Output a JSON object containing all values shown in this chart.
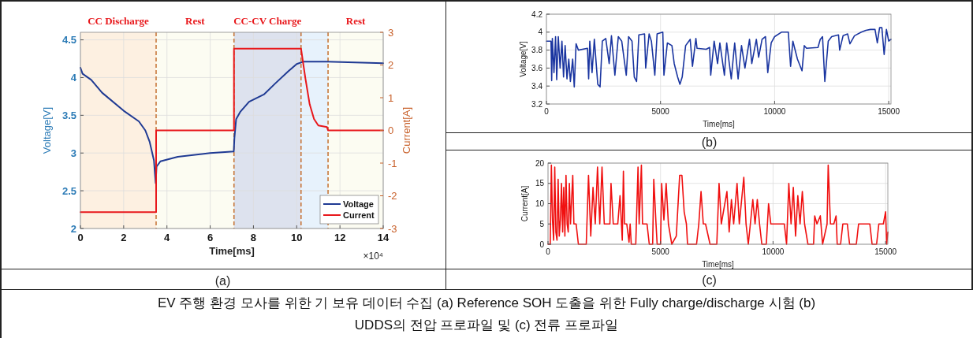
{
  "chart_data": [
    {
      "type": "line",
      "title": "(a)",
      "xlabel": "Time[ms]",
      "ylabel": "Voltage[V]",
      "y2label": "Current[A]",
      "xlim": [
        0,
        14
      ],
      "xticks": [
        0,
        2,
        4,
        6,
        8,
        10,
        12,
        14
      ],
      "ylim": [
        2,
        4.6
      ],
      "yticks": [
        2,
        2.5,
        3,
        3.5,
        4,
        4.5
      ],
      "y2lim": [
        -3,
        3
      ],
      "y2ticks": [
        -3,
        -2,
        -1,
        0,
        1,
        2,
        3
      ],
      "grid": true,
      "legend": "bottom right",
      "annotations": [
        "×10⁴"
      ],
      "bands": [
        {
          "axis": "x",
          "from": 0,
          "to": 3.5,
          "label": "CC Discharge",
          "color": "#fdf0e1"
        },
        {
          "axis": "x",
          "from": 3.5,
          "to": 7.1,
          "label": "Rest",
          "color": "#fcfcf2"
        },
        {
          "axis": "x",
          "from": 7.1,
          "to": 10.2,
          "label": "CC-CV Charge",
          "color": "#dde2ee"
        },
        {
          "axis": "x",
          "from": 10.2,
          "to": 11.45,
          "label": null,
          "color": "#e7f2fc"
        },
        {
          "axis": "x",
          "from": 11.45,
          "to": 14,
          "label": "Rest",
          "color": "#fcfcf2"
        }
      ],
      "ref_lines": [
        {
          "axis": "x",
          "value": 3.5,
          "color": "#c8783c",
          "line_style": "dashed"
        },
        {
          "axis": "x",
          "value": 7.1,
          "color": "#c8783c",
          "line_style": "dashed"
        },
        {
          "axis": "x",
          "value": 10.2,
          "color": "#c8783c",
          "line_style": "dashed"
        },
        {
          "axis": "x",
          "value": 11.45,
          "color": "#c8783c",
          "line_style": "dashed"
        }
      ],
      "series": [
        {
          "name": "Voltage",
          "color": "#1f3a93",
          "x": [
            0,
            0.1,
            0.5,
            1,
            2,
            2.7,
            3,
            3.2,
            3.4,
            3.48,
            3.52,
            3.7,
            4.5,
            6,
            7.09,
            7.12,
            7.2,
            7.4,
            7.8,
            8.5,
            9,
            9.6,
            10,
            10.3,
            11.4,
            14
          ],
          "values": [
            4.13,
            4.05,
            3.97,
            3.8,
            3.56,
            3.42,
            3.3,
            3.15,
            2.9,
            2.6,
            2.82,
            2.89,
            2.95,
            3.0,
            3.02,
            3.2,
            3.45,
            3.55,
            3.68,
            3.78,
            3.92,
            4.08,
            4.18,
            4.21,
            4.21,
            4.19
          ]
        },
        {
          "name": "Current",
          "color": "#e8171b",
          "axis": "y2",
          "x": [
            0,
            3.5,
            3.5,
            7.1,
            7.1,
            10.2,
            10.4,
            10.6,
            10.8,
            11,
            11.4,
            11.45,
            14
          ],
          "values": [
            -2.5,
            -2.5,
            0,
            0,
            2.5,
            2.5,
            1.6,
            0.8,
            0.35,
            0.15,
            0.1,
            0,
            0
          ]
        }
      ]
    },
    {
      "type": "line",
      "title": "(b)",
      "xlabel": "Time[ms]",
      "ylabel": "Voltage[V]",
      "xlim": [
        0,
        15100
      ],
      "xticks": [
        0,
        5000,
        10000,
        15000
      ],
      "ylim": [
        3.2,
        4.2
      ],
      "yticks": [
        3.2,
        3.4,
        3.6,
        3.8,
        4,
        4.2
      ],
      "grid": true,
      "series": [
        {
          "color": "#1a35a0",
          "x": [
            0,
            200,
            230,
            260,
            330,
            400,
            450,
            520,
            600,
            680,
            750,
            820,
            900,
            980,
            1050,
            1150,
            1220,
            1300,
            1400,
            1800,
            1850,
            1900,
            2000,
            2100,
            2250,
            2350,
            2450,
            2600,
            2750,
            2850,
            3000,
            3150,
            3300,
            3500,
            3600,
            3750,
            3850,
            3950,
            4050,
            4300,
            4350,
            4500,
            4600,
            4750,
            4850,
            5100,
            5150,
            5300,
            5500,
            5600,
            5750,
            5850,
            5950,
            6100,
            6300,
            6400,
            6550,
            6600,
            7000,
            7150,
            7200,
            7350,
            7500,
            7600,
            7800,
            7900,
            8100,
            8250,
            8400,
            8550,
            8700,
            8900,
            9000,
            9200,
            9300,
            9450,
            9600,
            9700,
            9850,
            10000,
            10300,
            10600,
            10700,
            10800,
            11000,
            11200,
            11300,
            11400,
            11900,
            12000,
            12100,
            12200,
            12350,
            12500,
            12800,
            12850,
            13000,
            13200,
            13300,
            13500,
            13800,
            14000,
            14200,
            14400,
            14500,
            14600,
            14700,
            14800,
            14900,
            15000,
            15100
          ],
          "values": [
            3.9,
            3.9,
            3.46,
            3.93,
            3.55,
            3.95,
            3.47,
            3.95,
            3.6,
            3.9,
            3.5,
            3.85,
            3.48,
            3.7,
            3.45,
            3.7,
            3.39,
            3.87,
            3.8,
            3.82,
            3.48,
            3.9,
            3.55,
            3.92,
            3.42,
            3.39,
            3.9,
            3.93,
            3.65,
            3.96,
            3.52,
            3.95,
            3.9,
            3.52,
            3.95,
            3.9,
            3.5,
            3.45,
            3.97,
            3.98,
            3.6,
            3.98,
            3.9,
            3.52,
            3.98,
            4.0,
            3.52,
            3.88,
            3.85,
            3.65,
            3.5,
            3.42,
            3.5,
            3.85,
            3.92,
            3.62,
            3.93,
            3.82,
            3.81,
            3.83,
            3.52,
            3.9,
            3.65,
            3.88,
            3.52,
            3.88,
            3.48,
            3.88,
            3.48,
            3.85,
            3.6,
            3.92,
            3.65,
            3.92,
            3.72,
            3.92,
            3.95,
            3.55,
            3.88,
            3.95,
            4.0,
            4.0,
            3.62,
            3.9,
            3.7,
            3.57,
            3.85,
            3.82,
            3.83,
            3.92,
            3.95,
            3.45,
            3.9,
            3.95,
            3.97,
            3.8,
            3.96,
            3.98,
            3.87,
            3.96,
            4.0,
            4.02,
            4.03,
            4.03,
            3.88,
            4.05,
            4.05,
            3.75,
            4.03,
            3.9,
            3.92
          ]
        }
      ]
    },
    {
      "type": "line",
      "title": "(c)",
      "xlabel": "Time[ms]",
      "ylabel": "Current[A]",
      "xlim": [
        0,
        15100
      ],
      "xticks": [
        0,
        5000,
        10000,
        15000
      ],
      "ylim": [
        0,
        20
      ],
      "yticks": [
        0,
        5,
        10,
        15,
        20
      ],
      "grid": true,
      "series": [
        {
          "color": "#f01010",
          "x": [
            0,
            100,
            150,
            200,
            250,
            300,
            350,
            400,
            450,
            500,
            550,
            600,
            650,
            700,
            750,
            800,
            850,
            900,
            950,
            1000,
            1100,
            1150,
            1250,
            1350,
            1700,
            1800,
            1900,
            2000,
            2100,
            2200,
            2300,
            2400,
            2500,
            2750,
            2800,
            2900,
            3100,
            3200,
            3300,
            3350,
            3400,
            3500,
            3600,
            3650,
            3700,
            3900,
            4000,
            4050,
            4150,
            4200,
            4400,
            4500,
            4650,
            4700,
            4800,
            4850,
            5000,
            5050,
            5150,
            5250,
            5350,
            5500,
            5700,
            5850,
            5950,
            6050,
            6150,
            6200,
            6600,
            6700,
            6800,
            6900,
            7000,
            7200,
            7500,
            7600,
            7700,
            7950,
            8050,
            8150,
            8250,
            8400,
            8500,
            8700,
            8800,
            8900,
            9100,
            9200,
            9300,
            9400,
            9500,
            9700,
            9800,
            9900,
            10500,
            10600,
            10700,
            10800,
            10900,
            11000,
            11100,
            11200,
            11300,
            11400,
            11550,
            11800,
            11850,
            11950,
            12100,
            12200,
            12400,
            12450,
            12550,
            12700,
            12800,
            12850,
            13000,
            13100,
            13300,
            13400,
            13700,
            13800,
            14300,
            14400,
            14600,
            14700,
            14900,
            15000,
            15050,
            15100
          ],
          "values": [
            0,
            0,
            19.5,
            6,
            1,
            19,
            3,
            1,
            16,
            2,
            6,
            15,
            3,
            14,
            2,
            17,
            5,
            3,
            15,
            5,
            17,
            5,
            5,
            0,
            0,
            17,
            2,
            14,
            5,
            19,
            5,
            19,
            5,
            5,
            15,
            5,
            5,
            12,
            1,
            18,
            5,
            5,
            0.5,
            5,
            0,
            0,
            19,
            5,
            19.5,
            5,
            5,
            0,
            0,
            16,
            5,
            0,
            0,
            15,
            6,
            15,
            5,
            0,
            2,
            17,
            17,
            8,
            5,
            0,
            0,
            5,
            13,
            5,
            5,
            0,
            0,
            15,
            5,
            13,
            3,
            11,
            5,
            15,
            5,
            16.5,
            5,
            0,
            11,
            5,
            11,
            5,
            0,
            0,
            10,
            5,
            5,
            0,
            15,
            5,
            14,
            2,
            12,
            5,
            13,
            5,
            0,
            0,
            7,
            5,
            7,
            0,
            5,
            19.5,
            5,
            5,
            7,
            0,
            0,
            5,
            5,
            0,
            0,
            5,
            5,
            0,
            0,
            5,
            5,
            8,
            0,
            3
          ]
        }
      ]
    },
    {
      "type": "other",
      "title": "EV 주행 환경 모사를 위한 기 보유 데이터 수집 (a) Reference SOH 도출을 위한 Fully charge/discharge 시험 (b) UDDS의 전압 프로파일 및 (c) 전류 프로파일"
    }
  ]
}
